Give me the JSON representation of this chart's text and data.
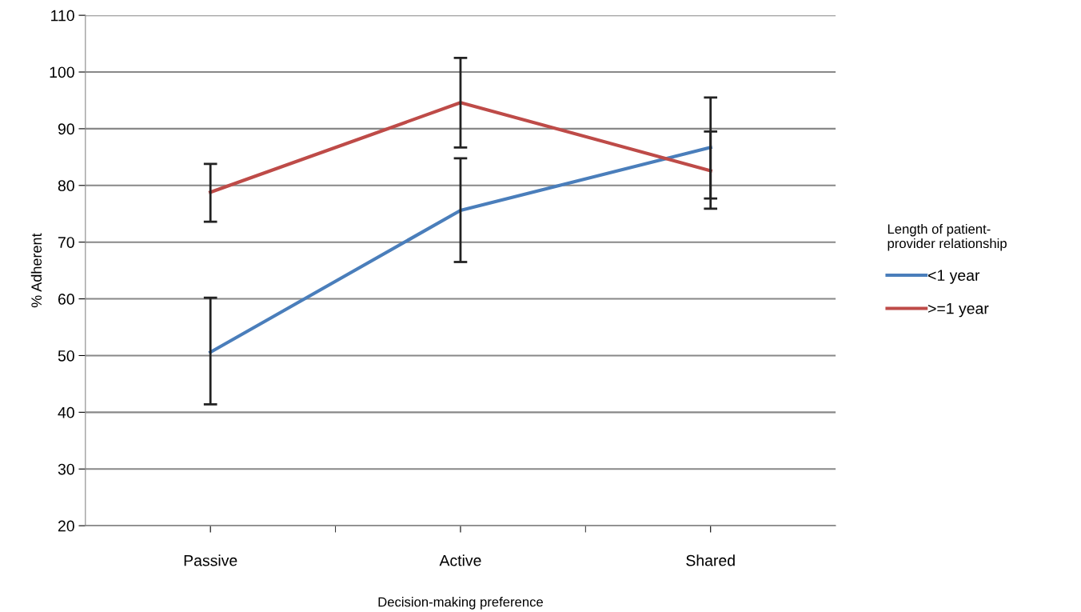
{
  "chart_data": {
    "type": "line",
    "xlabel": "Decision-making preference",
    "ylabel": "% Adherent",
    "legend_title": "Length of patient-\nprovider relationship",
    "categories": [
      "Passive",
      "Active",
      "Shared"
    ],
    "series": [
      {
        "name": "<1 year",
        "color": "#4a7ebb",
        "values": [
          50.6,
          75.6,
          86.7
        ],
        "errors": [
          [
            41.4,
            60.2
          ],
          [
            66.5,
            84.8
          ],
          [
            77.7,
            89.5
          ]
        ]
      },
      {
        "name": ">=1 year",
        "color": "#be4b48",
        "values": [
          78.8,
          94.6,
          82.6
        ],
        "errors": [
          [
            73.6,
            83.8
          ],
          [
            86.7,
            102.5
          ],
          [
            75.9,
            95.5
          ]
        ]
      }
    ],
    "ylim": [
      20,
      110
    ],
    "yticks": [
      20,
      30,
      40,
      50,
      60,
      70,
      80,
      90,
      100,
      110
    ],
    "grid": "y",
    "legend": "right",
    "marker": "none",
    "line_style": "solid"
  }
}
